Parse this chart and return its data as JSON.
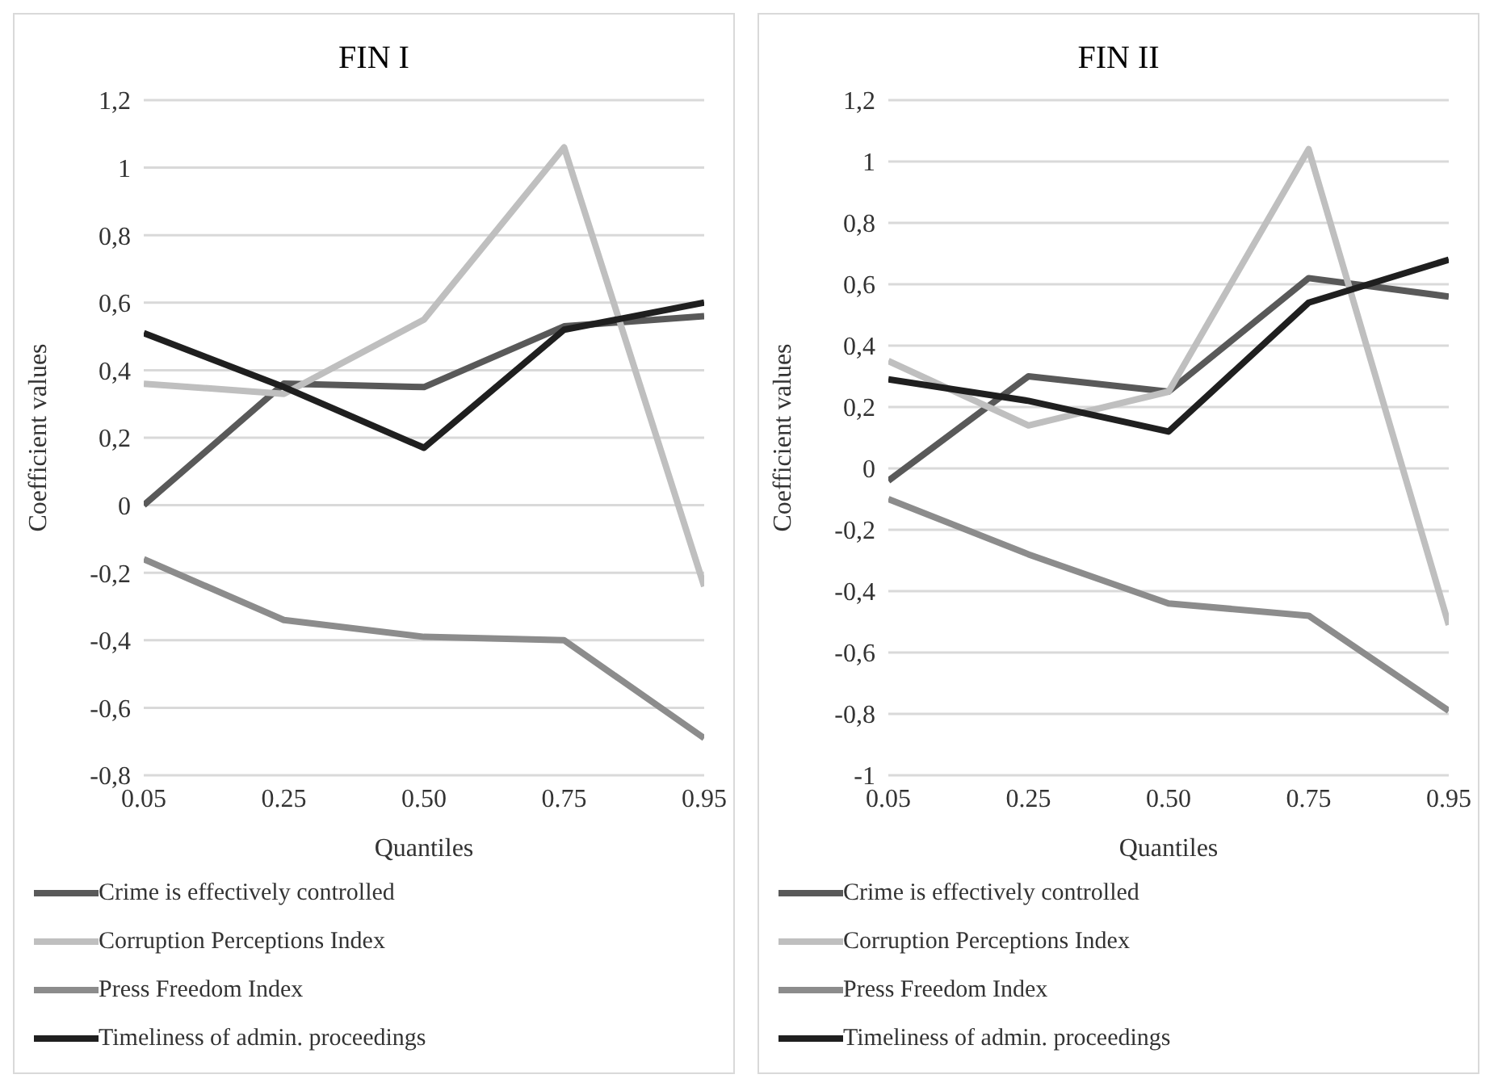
{
  "chart_data": [
    {
      "type": "line",
      "title": "FIN I",
      "xlabel": "Quantiles",
      "ylabel": "Coefficient values",
      "categories": [
        "0.05",
        "0.25",
        "0.50",
        "0.75",
        "0.95"
      ],
      "series": [
        {
          "name": "Crime is effectively controlled",
          "color": "#595959",
          "values": [
            0.0,
            0.36,
            0.35,
            0.53,
            0.56
          ]
        },
        {
          "name": "Corruption Perceptions Index",
          "color": "#bfbfbf",
          "values": [
            0.36,
            0.33,
            0.55,
            1.06,
            -0.24
          ]
        },
        {
          "name": "Press Freedom Index",
          "color": "#8c8c8c",
          "values": [
            -0.16,
            -0.34,
            -0.39,
            -0.4,
            -0.69
          ]
        },
        {
          "name": "Timeliness of admin. proceedings",
          "color": "#1f1f1f",
          "values": [
            0.51,
            0.35,
            0.17,
            0.52,
            0.6
          ]
        }
      ],
      "ylim": [
        -0.8,
        1.2
      ],
      "yticks": [
        {
          "value": -0.8,
          "label": "-0,8"
        },
        {
          "value": -0.6,
          "label": "-0,6"
        },
        {
          "value": -0.4,
          "label": "-0,4"
        },
        {
          "value": -0.2,
          "label": "-0,2"
        },
        0,
        {
          "value": 0.2,
          "label": "0,2"
        },
        {
          "value": 0.4,
          "label": "0,4"
        },
        {
          "value": 0.6,
          "label": "0,6"
        },
        {
          "value": 0.8,
          "label": "0,8"
        },
        1,
        {
          "value": 1.2,
          "label": "1,2"
        }
      ],
      "grid": "y",
      "legend": "bottom",
      "marker": "none",
      "line_style": "solid"
    },
    {
      "type": "line",
      "title": "FIN II",
      "xlabel": "Quantiles",
      "ylabel": "Coefficient values",
      "categories": [
        "0.05",
        "0.25",
        "0.50",
        "0.75",
        "0.95"
      ],
      "series": [
        {
          "name": "Crime is effectively controlled",
          "color": "#595959",
          "values": [
            -0.04,
            0.3,
            0.25,
            0.62,
            0.56
          ]
        },
        {
          "name": "Corruption Perceptions Index",
          "color": "#bfbfbf",
          "values": [
            0.35,
            0.14,
            0.25,
            1.04,
            -0.51
          ]
        },
        {
          "name": "Press Freedom Index",
          "color": "#8c8c8c",
          "values": [
            -0.1,
            -0.28,
            -0.44,
            -0.48,
            -0.79
          ]
        },
        {
          "name": "Timeliness of admin. proceedings",
          "color": "#1f1f1f",
          "values": [
            0.29,
            0.22,
            0.12,
            0.54,
            0.68
          ]
        }
      ],
      "ylim": [
        -1,
        1.2
      ],
      "yticks": [
        -1,
        {
          "value": -0.8,
          "label": "-0,8"
        },
        {
          "value": -0.6,
          "label": "-0,6"
        },
        {
          "value": -0.4,
          "label": "-0,4"
        },
        {
          "value": -0.2,
          "label": "-0,2"
        },
        0,
        {
          "value": 0.2,
          "label": "0,2"
        },
        {
          "value": 0.4,
          "label": "0,4"
        },
        {
          "value": 0.6,
          "label": "0,6"
        },
        {
          "value": 0.8,
          "label": "0,8"
        },
        1,
        {
          "value": 1.2,
          "label": "1,2"
        }
      ],
      "grid": "y",
      "legend": "bottom",
      "marker": "none",
      "line_style": "solid"
    }
  ]
}
